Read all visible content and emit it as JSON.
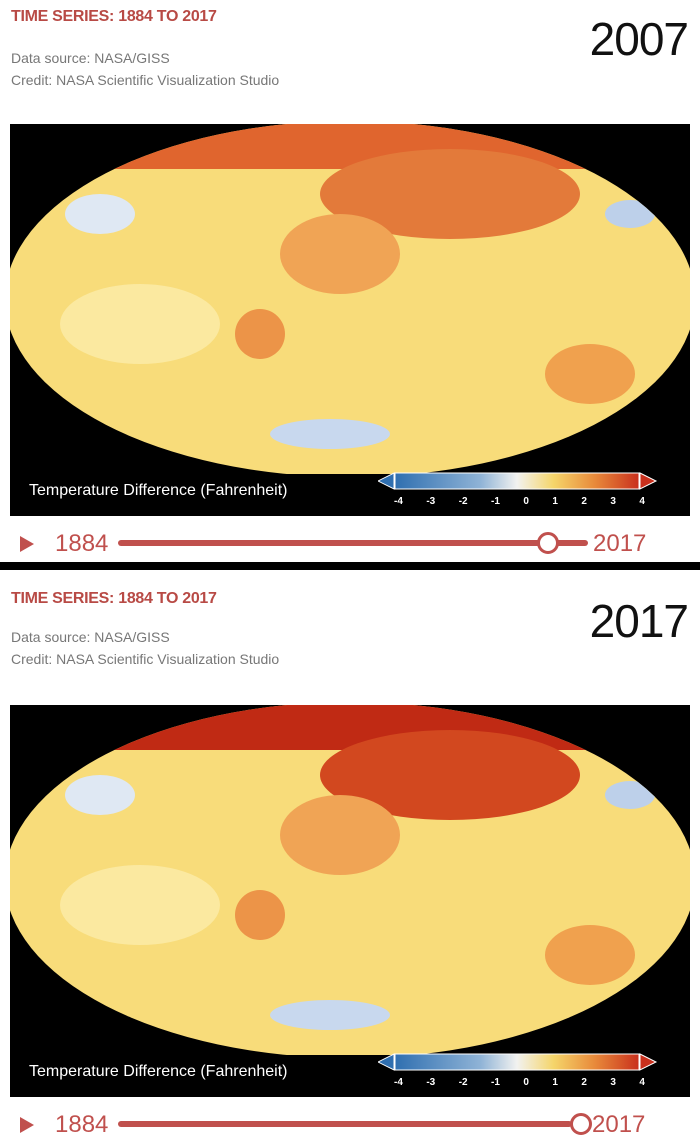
{
  "panels": [
    {
      "title": "TIME SERIES: 1884 TO 2017",
      "data_source": "Data source: NASA/GISS",
      "credit": "Credit: NASA Scientific Visualization Studio",
      "year": "2007",
      "legend_label": "Temperature Difference (Fahrenheit)",
      "colorbar_ticks": [
        "-4",
        "-3",
        "-2",
        "-1",
        "0",
        "1",
        "2",
        "3",
        "4"
      ],
      "slider": {
        "start": "1884",
        "end": "2017",
        "value": 2007
      }
    },
    {
      "title": "TIME SERIES: 1884 TO 2017",
      "data_source": "Data source: NASA/GISS",
      "credit": "Credit: NASA Scientific Visualization Studio",
      "year": "2017",
      "legend_label": "Temperature Difference (Fahrenheit)",
      "colorbar_ticks": [
        "-4",
        "-3",
        "-2",
        "-1",
        "0",
        "1",
        "2",
        "3",
        "4"
      ],
      "slider": {
        "start": "1884",
        "end": "2017",
        "value": 2017
      }
    }
  ],
  "colors": {
    "accent": "#c0504d",
    "cold": "#2f6fb0",
    "neutral": "#f2f2f0",
    "warm": "#f5c542",
    "hot": "#c9301d"
  }
}
